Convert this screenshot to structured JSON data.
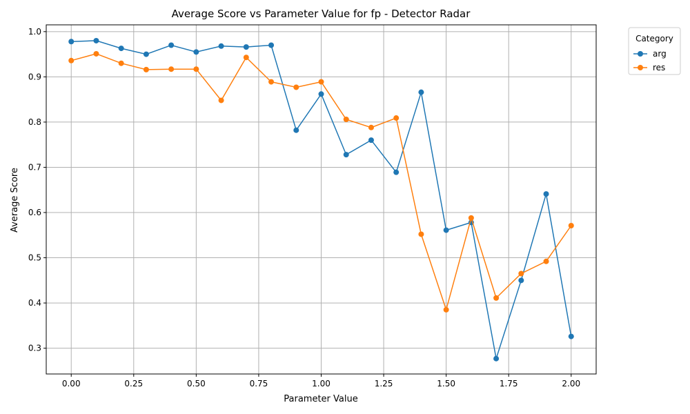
{
  "chart_data": {
    "type": "line",
    "title": "Average Score vs Parameter Value for fp - Detector Radar",
    "xlabel": "Parameter Value",
    "ylabel": "Average Score",
    "x": [
      0.0,
      0.1,
      0.2,
      0.3,
      0.4,
      0.5,
      0.6,
      0.7,
      0.8,
      0.9,
      1.0,
      1.1,
      1.2,
      1.3,
      1.4,
      1.5,
      1.6,
      1.7,
      1.8,
      1.9,
      2.0
    ],
    "xlim": [
      -0.1,
      2.1
    ],
    "ylim": [
      0.243,
      1.015
    ],
    "xticks": [
      0.0,
      0.25,
      0.5,
      0.75,
      1.0,
      1.25,
      1.5,
      1.75,
      2.0
    ],
    "xtick_labels": [
      "0.00",
      "0.25",
      "0.50",
      "0.75",
      "1.00",
      "1.25",
      "1.50",
      "1.75",
      "2.00"
    ],
    "yticks": [
      0.3,
      0.4,
      0.5,
      0.6,
      0.7,
      0.8,
      0.9,
      1.0
    ],
    "ytick_labels": [
      "0.3",
      "0.4",
      "0.5",
      "0.6",
      "0.7",
      "0.8",
      "0.9",
      "1.0"
    ],
    "grid": true,
    "legend": {
      "title": "Category",
      "placement": "outside-top-right"
    },
    "series": [
      {
        "name": "arg",
        "color": "#1f77b4",
        "values": [
          0.978,
          0.98,
          0.963,
          0.95,
          0.97,
          0.955,
          0.968,
          0.966,
          0.97,
          0.782,
          0.862,
          0.728,
          0.76,
          0.689,
          0.866,
          0.561,
          0.578,
          0.277,
          0.45,
          0.641,
          0.326
        ]
      },
      {
        "name": "res",
        "color": "#ff7f0e",
        "values": [
          0.936,
          0.951,
          0.93,
          0.916,
          0.917,
          0.917,
          0.848,
          0.943,
          0.889,
          0.877,
          0.889,
          0.806,
          0.788,
          0.809,
          0.552,
          0.385,
          0.588,
          0.411,
          0.465,
          0.492,
          0.571
        ]
      }
    ]
  }
}
